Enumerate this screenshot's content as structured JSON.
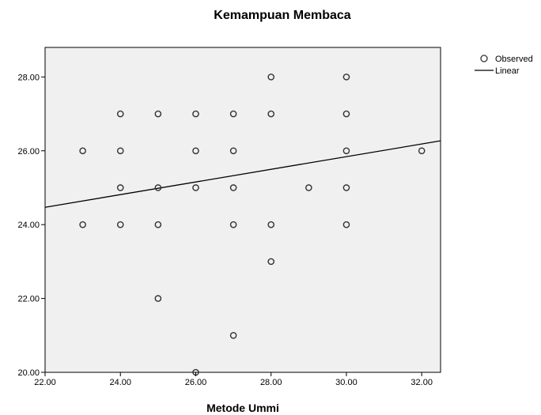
{
  "chart_data": {
    "type": "scatter",
    "title": "Kemampuan Membaca",
    "xlabel": "Metode Ummi",
    "ylabel": "",
    "xlim": [
      22,
      32.5
    ],
    "ylim": [
      20,
      28.8
    ],
    "xticks": [
      22,
      24,
      26,
      28,
      30,
      32
    ],
    "yticks": [
      20,
      22,
      24,
      26,
      28
    ],
    "xtick_labels": [
      "22.00",
      "24.00",
      "26.00",
      "28.00",
      "30.00",
      "32.00"
    ],
    "ytick_labels": [
      "20.00",
      "22.00",
      "24.00",
      "26.00",
      "28.00"
    ],
    "grid": false,
    "legend_position": "top-right",
    "legend": [
      "Observed",
      "Linear"
    ],
    "series": [
      {
        "name": "Observed",
        "kind": "points",
        "points": [
          [
            23,
            26
          ],
          [
            23,
            24
          ],
          [
            24,
            27
          ],
          [
            24,
            26
          ],
          [
            24,
            25
          ],
          [
            24,
            24
          ],
          [
            25,
            27
          ],
          [
            25,
            25
          ],
          [
            25,
            24
          ],
          [
            25,
            22
          ],
          [
            26,
            27
          ],
          [
            26,
            26
          ],
          [
            26,
            25
          ],
          [
            26,
            20
          ],
          [
            27,
            27
          ],
          [
            27,
            26
          ],
          [
            27,
            25
          ],
          [
            27,
            24
          ],
          [
            27,
            21
          ],
          [
            28,
            28
          ],
          [
            28,
            27
          ],
          [
            28,
            24
          ],
          [
            28,
            23
          ],
          [
            29,
            25
          ],
          [
            30,
            28
          ],
          [
            30,
            27
          ],
          [
            30,
            26
          ],
          [
            30,
            25
          ],
          [
            30,
            24
          ],
          [
            32,
            26
          ]
        ]
      },
      {
        "name": "Linear",
        "kind": "line",
        "points": [
          [
            22,
            24.47
          ],
          [
            32.5,
            26.27
          ]
        ]
      }
    ],
    "colors": {
      "plot_background": "#f0f0f0",
      "marker": "#333333",
      "line": "#000000"
    }
  }
}
